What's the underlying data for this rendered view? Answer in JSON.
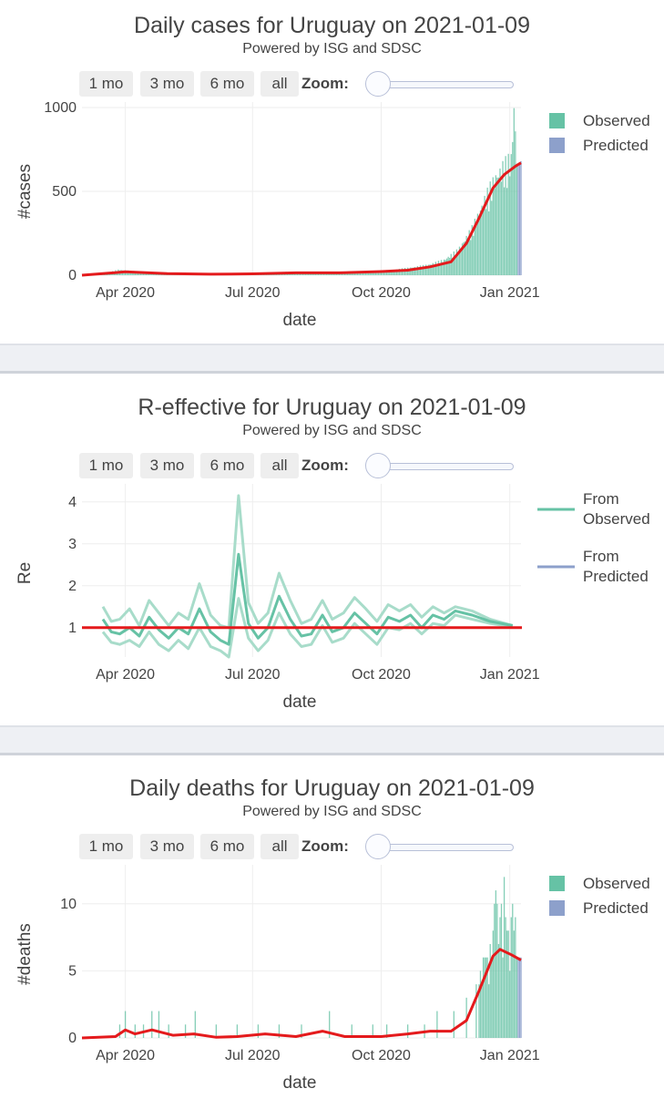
{
  "range_buttons": [
    "1 mo",
    "3 mo",
    "6 mo",
    "all"
  ],
  "zoom_label": "Zoom:",
  "x_ticks": [
    "Apr 2020",
    "Jul 2020",
    "Oct 2020",
    "Jan 2021"
  ],
  "subtitle": "Powered by ISG and SDSC",
  "colors": {
    "observed": "#66c2a5",
    "predicted": "#8da0cb",
    "line": "#e41a1c",
    "band": "#a8dcca"
  },
  "chart_data": [
    {
      "type": "bar",
      "title": "Daily cases for Uruguay on 2021-01-09",
      "xlabel": "date",
      "ylabel": "#cases",
      "ylim": [
        0,
        1000
      ],
      "y_ticks": [
        0,
        500,
        1000
      ],
      "x_range": [
        "2020-03-01",
        "2021-01-09"
      ],
      "legend": [
        "Observed",
        "Predicted"
      ],
      "observed_points": [
        [
          "2020-03-13",
          4
        ],
        [
          "2020-03-20",
          15
        ],
        [
          "2020-03-27",
          30
        ],
        [
          "2020-04-03",
          25
        ],
        [
          "2020-04-10",
          20
        ],
        [
          "2020-04-20",
          15
        ],
        [
          "2020-05-01",
          8
        ],
        [
          "2020-06-01",
          6
        ],
        [
          "2020-06-20",
          8
        ],
        [
          "2020-07-10",
          12
        ],
        [
          "2020-07-25",
          18
        ],
        [
          "2020-08-10",
          15
        ],
        [
          "2020-08-25",
          12
        ],
        [
          "2020-09-10",
          16
        ],
        [
          "2020-09-25",
          20
        ],
        [
          "2020-10-10",
          30
        ],
        [
          "2020-10-25",
          45
        ],
        [
          "2020-11-05",
          60
        ],
        [
          "2020-11-15",
          85
        ],
        [
          "2020-11-25",
          140
        ],
        [
          "2020-12-05",
          260
        ],
        [
          "2020-12-15",
          440
        ],
        [
          "2020-12-22",
          550
        ],
        [
          "2020-12-28",
          610
        ],
        [
          "2021-01-02",
          650
        ],
        [
          "2021-01-04",
          940
        ],
        [
          "2021-01-06",
          670
        ]
      ],
      "predicted_points": [
        [
          "2021-01-07",
          660
        ],
        [
          "2021-01-09",
          680
        ]
      ],
      "trend_line": [
        [
          "2020-03-01",
          0
        ],
        [
          "2020-03-20",
          12
        ],
        [
          "2020-04-01",
          20
        ],
        [
          "2020-05-01",
          10
        ],
        [
          "2020-06-01",
          6
        ],
        [
          "2020-07-01",
          8
        ],
        [
          "2020-08-01",
          14
        ],
        [
          "2020-09-01",
          14
        ],
        [
          "2020-10-01",
          22
        ],
        [
          "2020-10-20",
          30
        ],
        [
          "2020-11-05",
          50
        ],
        [
          "2020-11-20",
          80
        ],
        [
          "2020-12-01",
          190
        ],
        [
          "2020-12-10",
          340
        ],
        [
          "2020-12-20",
          520
        ],
        [
          "2020-12-28",
          600
        ],
        [
          "2021-01-05",
          650
        ],
        [
          "2021-01-09",
          670
        ]
      ]
    },
    {
      "type": "line",
      "title": "R-effective for Uruguay on 2021-01-09",
      "xlabel": "date",
      "ylabel": "Re",
      "ylim": [
        0.3,
        4.3
      ],
      "y_ticks": [
        1,
        2,
        3,
        4
      ],
      "x_range": [
        "2020-03-01",
        "2021-01-09"
      ],
      "legend": [
        "From Observed",
        "From Predicted"
      ],
      "reference_line": 1,
      "series": [
        {
          "name": "From Observed",
          "points": [
            [
              "2020-03-16",
              1.2
            ],
            [
              "2020-03-22",
              0.9
            ],
            [
              "2020-03-28",
              0.85
            ],
            [
              "2020-04-04",
              1.0
            ],
            [
              "2020-04-11",
              0.8
            ],
            [
              "2020-04-18",
              1.25
            ],
            [
              "2020-04-25",
              0.95
            ],
            [
              "2020-05-02",
              0.75
            ],
            [
              "2020-05-09",
              1.0
            ],
            [
              "2020-05-16",
              0.85
            ],
            [
              "2020-05-24",
              1.45
            ],
            [
              "2020-06-01",
              0.9
            ],
            [
              "2020-06-08",
              0.7
            ],
            [
              "2020-06-14",
              0.6
            ],
            [
              "2020-06-21",
              2.75
            ],
            [
              "2020-06-28",
              1.1
            ],
            [
              "2020-07-05",
              0.75
            ],
            [
              "2020-07-12",
              1.0
            ],
            [
              "2020-07-20",
              1.75
            ],
            [
              "2020-07-28",
              1.2
            ],
            [
              "2020-08-05",
              0.8
            ],
            [
              "2020-08-12",
              0.85
            ],
            [
              "2020-08-20",
              1.3
            ],
            [
              "2020-08-27",
              0.9
            ],
            [
              "2020-09-04",
              1.0
            ],
            [
              "2020-09-12",
              1.35
            ],
            [
              "2020-09-20",
              1.1
            ],
            [
              "2020-09-28",
              0.85
            ],
            [
              "2020-10-06",
              1.25
            ],
            [
              "2020-10-14",
              1.15
            ],
            [
              "2020-10-22",
              1.3
            ],
            [
              "2020-10-30",
              1.0
            ],
            [
              "2020-11-07",
              1.3
            ],
            [
              "2020-11-15",
              1.2
            ],
            [
              "2020-11-23",
              1.4
            ],
            [
              "2020-12-05",
              1.3
            ],
            [
              "2020-12-18",
              1.15
            ],
            [
              "2021-01-03",
              1.05
            ]
          ]
        }
      ],
      "band_upper": [
        [
          "2020-03-16",
          1.5
        ],
        [
          "2020-03-22",
          1.15
        ],
        [
          "2020-03-28",
          1.2
        ],
        [
          "2020-04-04",
          1.45
        ],
        [
          "2020-04-11",
          1.05
        ],
        [
          "2020-04-18",
          1.65
        ],
        [
          "2020-04-25",
          1.35
        ],
        [
          "2020-05-02",
          1.05
        ],
        [
          "2020-05-09",
          1.35
        ],
        [
          "2020-05-16",
          1.2
        ],
        [
          "2020-05-24",
          2.05
        ],
        [
          "2020-06-01",
          1.3
        ],
        [
          "2020-06-08",
          1.05
        ],
        [
          "2020-06-14",
          1.0
        ],
        [
          "2020-06-21",
          4.15
        ],
        [
          "2020-06-28",
          1.6
        ],
        [
          "2020-07-05",
          1.1
        ],
        [
          "2020-07-12",
          1.35
        ],
        [
          "2020-07-20",
          2.3
        ],
        [
          "2020-07-28",
          1.65
        ],
        [
          "2020-08-05",
          1.1
        ],
        [
          "2020-08-12",
          1.2
        ],
        [
          "2020-08-20",
          1.65
        ],
        [
          "2020-08-27",
          1.2
        ],
        [
          "2020-09-04",
          1.35
        ],
        [
          "2020-09-12",
          1.72
        ],
        [
          "2020-09-20",
          1.45
        ],
        [
          "2020-09-28",
          1.15
        ],
        [
          "2020-10-06",
          1.55
        ],
        [
          "2020-10-14",
          1.4
        ],
        [
          "2020-10-22",
          1.55
        ],
        [
          "2020-10-30",
          1.25
        ],
        [
          "2020-11-07",
          1.5
        ],
        [
          "2020-11-15",
          1.35
        ],
        [
          "2020-11-23",
          1.5
        ],
        [
          "2020-12-05",
          1.4
        ],
        [
          "2020-12-18",
          1.2
        ],
        [
          "2021-01-03",
          1.05
        ]
      ],
      "band_lower": [
        [
          "2020-03-16",
          0.9
        ],
        [
          "2020-03-22",
          0.65
        ],
        [
          "2020-03-28",
          0.6
        ],
        [
          "2020-04-04",
          0.7
        ],
        [
          "2020-04-11",
          0.55
        ],
        [
          "2020-04-18",
          0.9
        ],
        [
          "2020-04-25",
          0.6
        ],
        [
          "2020-05-02",
          0.45
        ],
        [
          "2020-05-09",
          0.7
        ],
        [
          "2020-05-16",
          0.5
        ],
        [
          "2020-05-24",
          1.0
        ],
        [
          "2020-06-01",
          0.55
        ],
        [
          "2020-06-08",
          0.45
        ],
        [
          "2020-06-14",
          0.3
        ],
        [
          "2020-06-21",
          1.7
        ],
        [
          "2020-06-28",
          0.75
        ],
        [
          "2020-07-05",
          0.45
        ],
        [
          "2020-07-12",
          0.7
        ],
        [
          "2020-07-20",
          1.35
        ],
        [
          "2020-07-28",
          0.85
        ],
        [
          "2020-08-05",
          0.55
        ],
        [
          "2020-08-12",
          0.6
        ],
        [
          "2020-08-20",
          1.05
        ],
        [
          "2020-08-27",
          0.65
        ],
        [
          "2020-09-04",
          0.75
        ],
        [
          "2020-09-12",
          1.1
        ],
        [
          "2020-09-20",
          0.85
        ],
        [
          "2020-09-28",
          0.6
        ],
        [
          "2020-10-06",
          1.0
        ],
        [
          "2020-10-14",
          0.95
        ],
        [
          "2020-10-22",
          1.1
        ],
        [
          "2020-10-30",
          0.85
        ],
        [
          "2020-11-07",
          1.1
        ],
        [
          "2020-11-15",
          1.05
        ],
        [
          "2020-11-23",
          1.3
        ],
        [
          "2020-12-05",
          1.2
        ],
        [
          "2020-12-18",
          1.1
        ],
        [
          "2021-01-03",
          1.02
        ]
      ]
    },
    {
      "type": "bar",
      "title": "Daily deaths for Uruguay on 2021-01-09",
      "xlabel": "date",
      "ylabel": "#deaths",
      "ylim": [
        0,
        12.5
      ],
      "y_ticks": [
        0,
        5,
        10
      ],
      "x_range": [
        "2020-03-01",
        "2021-01-09"
      ],
      "legend": [
        "Observed",
        "Predicted"
      ],
      "observed_points": [
        [
          "2020-03-28",
          1
        ],
        [
          "2020-04-01",
          2
        ],
        [
          "2020-04-08",
          1
        ],
        [
          "2020-04-14",
          1
        ],
        [
          "2020-04-20",
          2
        ],
        [
          "2020-04-25",
          2
        ],
        [
          "2020-05-02",
          1
        ],
        [
          "2020-05-14",
          1
        ],
        [
          "2020-05-21",
          2
        ],
        [
          "2020-06-05",
          1
        ],
        [
          "2020-06-20",
          1
        ],
        [
          "2020-07-05",
          1
        ],
        [
          "2020-07-20",
          1
        ],
        [
          "2020-08-05",
          1
        ],
        [
          "2020-08-25",
          2
        ],
        [
          "2020-09-10",
          1
        ],
        [
          "2020-09-25",
          1
        ],
        [
          "2020-10-05",
          1
        ],
        [
          "2020-10-20",
          1
        ],
        [
          "2020-11-01",
          1
        ],
        [
          "2020-11-10",
          2
        ],
        [
          "2020-11-22",
          2
        ],
        [
          "2020-12-01",
          3
        ],
        [
          "2020-12-08",
          4
        ],
        [
          "2020-12-14",
          6
        ],
        [
          "2020-12-18",
          7
        ],
        [
          "2020-12-22",
          11
        ],
        [
          "2020-12-25",
          9
        ],
        [
          "2020-12-28",
          12
        ],
        [
          "2020-12-31",
          8
        ],
        [
          "2021-01-03",
          10
        ],
        [
          "2021-01-05",
          9
        ],
        [
          "2021-01-06",
          6
        ]
      ],
      "predicted_points": [
        [
          "2021-01-07",
          6
        ],
        [
          "2021-01-09",
          6
        ]
      ],
      "trend_line": [
        [
          "2020-03-01",
          0
        ],
        [
          "2020-03-25",
          0.1
        ],
        [
          "2020-04-01",
          0.6
        ],
        [
          "2020-04-08",
          0.3
        ],
        [
          "2020-04-20",
          0.6
        ],
        [
          "2020-05-05",
          0.2
        ],
        [
          "2020-05-20",
          0.3
        ],
        [
          "2020-06-05",
          0.05
        ],
        [
          "2020-06-20",
          0.1
        ],
        [
          "2020-07-10",
          0.3
        ],
        [
          "2020-08-01",
          0.1
        ],
        [
          "2020-08-20",
          0.5
        ],
        [
          "2020-09-05",
          0.1
        ],
        [
          "2020-10-01",
          0.1
        ],
        [
          "2020-10-20",
          0.3
        ],
        [
          "2020-11-05",
          0.5
        ],
        [
          "2020-11-20",
          0.5
        ],
        [
          "2020-12-01",
          1.3
        ],
        [
          "2020-12-10",
          3.5
        ],
        [
          "2020-12-20",
          6.1
        ],
        [
          "2020-12-25",
          6.6
        ],
        [
          "2021-01-02",
          6.2
        ],
        [
          "2021-01-09",
          5.8
        ]
      ]
    }
  ]
}
